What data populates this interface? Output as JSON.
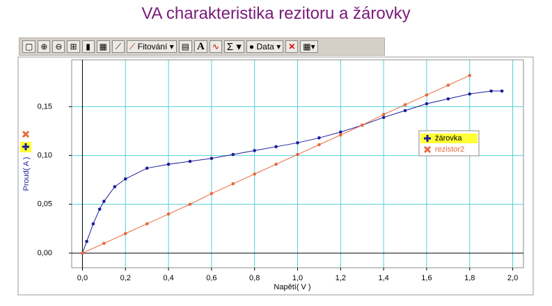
{
  "toolbar": {
    "buttons": [
      "Fitování",
      "A",
      "Σ",
      "Data"
    ]
  },
  "chart_data": {
    "type": "scatter",
    "title": "VA charakteristika rezitoru a žárovky",
    "x_label": "Napětí( V )",
    "y_label": "Proud( A )",
    "xlim": [
      -0.05,
      2.05
    ],
    "ylim": [
      -0.015,
      0.198
    ],
    "xticks": [
      {
        "value": 0,
        "label": "0,0"
      },
      {
        "value": 0.2,
        "label": "0,2"
      },
      {
        "value": 0.4,
        "label": "0,4"
      },
      {
        "value": 0.6,
        "label": "0,6"
      },
      {
        "value": 0.8,
        "label": "0,8"
      },
      {
        "value": 1.0,
        "label": "1,0"
      },
      {
        "value": 1.2,
        "label": "1,2"
      },
      {
        "value": 1.4,
        "label": "1,4"
      },
      {
        "value": 1.6,
        "label": "1,6"
      },
      {
        "value": 1.8,
        "label": "1,8"
      },
      {
        "value": 2.0,
        "label": "2,0"
      }
    ],
    "yticks": [
      {
        "value": 0,
        "label": "0,00"
      },
      {
        "value": 0.05,
        "label": "0,05"
      },
      {
        "value": 0.1,
        "label": "0,10"
      },
      {
        "value": 0.15,
        "label": "0,15"
      }
    ],
    "grid": true,
    "series": [
      {
        "name": "žárovka",
        "color": "#1c1c9c",
        "x": [
          0,
          0.02,
          0.05,
          0.08,
          0.1,
          0.15,
          0.2,
          0.3,
          0.4,
          0.5,
          0.6,
          0.7,
          0.8,
          0.9,
          1.0,
          1.1,
          1.2,
          1.3,
          1.4,
          1.5,
          1.6,
          1.7,
          1.8,
          1.9,
          1.95
        ],
        "values": [
          0,
          0.012,
          0.03,
          0.045,
          0.053,
          0.068,
          0.076,
          0.087,
          0.091,
          0.094,
          0.097,
          0.101,
          0.105,
          0.109,
          0.113,
          0.118,
          0.124,
          0.131,
          0.139,
          0.146,
          0.153,
          0.158,
          0.163,
          0.166,
          0.166
        ]
      },
      {
        "name": "rezistor2",
        "color": "#e8683c",
        "x": [
          0,
          0.1,
          0.2,
          0.3,
          0.4,
          0.5,
          0.6,
          0.7,
          0.8,
          0.9,
          1.0,
          1.1,
          1.2,
          1.3,
          1.4,
          1.5,
          1.6,
          1.7,
          1.8
        ],
        "values": [
          0,
          0.01,
          0.02,
          0.03,
          0.04,
          0.05,
          0.061,
          0.071,
          0.081,
          0.091,
          0.101,
          0.111,
          0.121,
          0.131,
          0.142,
          0.152,
          0.162,
          0.172,
          0.182
        ]
      }
    ]
  }
}
